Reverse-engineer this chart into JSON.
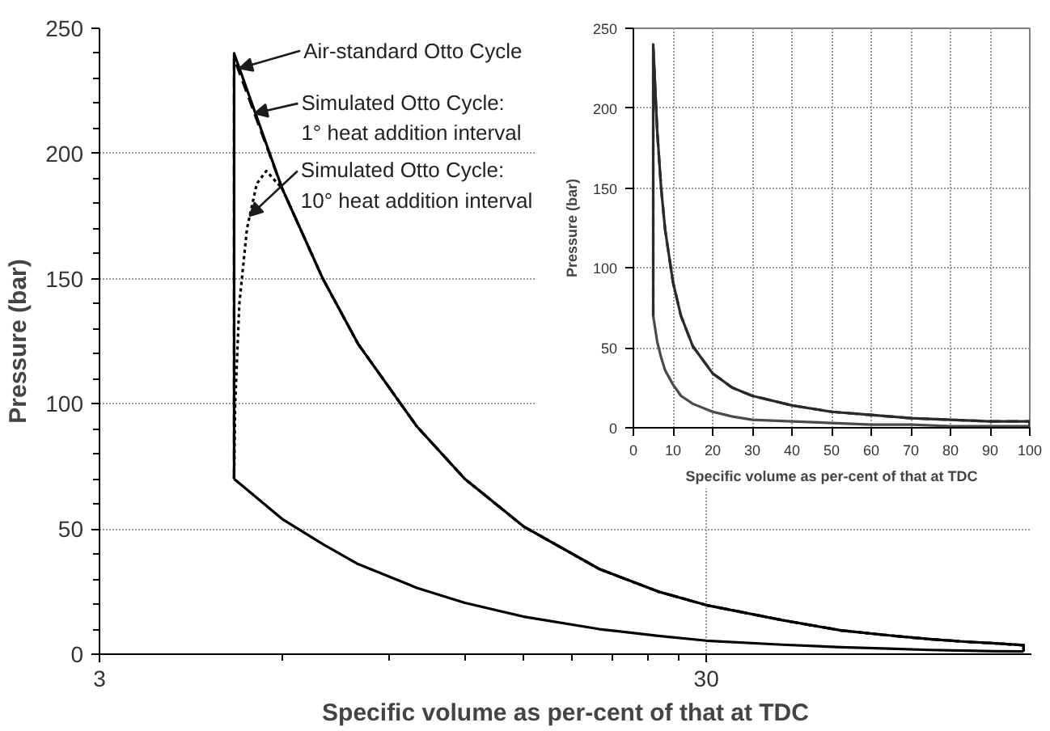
{
  "chart_data": [
    {
      "type": "line",
      "xlabel": "Specific volume as per-cent of that at TDC",
      "ylabel": "Pressure (bar)",
      "log": "x",
      "xlim": [
        3,
        103
      ],
      "ylim": [
        0,
        250
      ],
      "xticks": [
        3,
        {
          "value": 6,
          "label": null
        },
        {
          "value": 9,
          "label": null
        },
        {
          "value": 12,
          "label": null
        },
        {
          "value": 15,
          "label": null
        },
        {
          "value": 18,
          "label": null
        },
        {
          "value": 21,
          "label": null
        },
        {
          "value": 24,
          "label": null
        },
        {
          "value": 27,
          "label": null
        },
        30
      ],
      "yticks": [
        0,
        {
          "value": 10,
          "label": null
        },
        {
          "value": 20,
          "label": null
        },
        {
          "value": 30,
          "label": null
        },
        {
          "value": 40,
          "label": null
        },
        50,
        {
          "value": 60,
          "label": null
        },
        {
          "value": 70,
          "label": null
        },
        {
          "value": 80,
          "label": null
        },
        {
          "value": 90,
          "label": null
        },
        100,
        {
          "value": 110,
          "label": null
        },
        {
          "value": 120,
          "label": null
        },
        {
          "value": 130,
          "label": null
        },
        {
          "value": 140,
          "label": null
        },
        150,
        {
          "value": 160,
          "label": null
        },
        {
          "value": 170,
          "label": null
        },
        {
          "value": 180,
          "label": null
        },
        {
          "value": 190,
          "label": null
        },
        200,
        {
          "value": 210,
          "label": null
        },
        {
          "value": 220,
          "label": null
        },
        {
          "value": 230,
          "label": null
        },
        {
          "value": 240,
          "label": null
        },
        250
      ],
      "grid": true,
      "annotations": [
        {
          "text": "Air-standard Otto Cycle",
          "x": 5.1,
          "y": 234
        },
        {
          "text": "Simulated Otto Cycle:\n1° heat addition interval",
          "x": 5.4,
          "y": 216
        },
        {
          "text": "Simulated Otto Cycle:\n10° heat addition interval",
          "x": 5.3,
          "y": 175
        }
      ],
      "series": [
        {
          "color": "#000000",
          "line_style": "solid",
          "x": [
            5,
            6,
            7,
            8,
            10,
            12,
            15,
            20,
            25,
            30,
            40,
            50,
            60,
            70,
            80,
            90,
            100
          ],
          "values": [
            70,
            54,
            44,
            36,
            26.5,
            20.5,
            15,
            10,
            7.3,
            5.4,
            3.8,
            2.8,
            2.2,
            1.7,
            1.4,
            1.2,
            1.1
          ]
        },
        {
          "color": "#000000",
          "line_style": "solid",
          "x": [
            5,
            5,
            6,
            7,
            8,
            10,
            12,
            15,
            20,
            25,
            30,
            40,
            50,
            60,
            70,
            80,
            90,
            100,
            100
          ],
          "values": [
            70,
            240,
            186,
            150,
            124,
            91,
            70,
            51,
            34,
            25,
            19.6,
            13.6,
            9.5,
            7.5,
            6,
            5,
            4.3,
            3.6,
            1.1
          ]
        },
        {
          "color": "#000000",
          "line_style": "dashed",
          "x": [
            5,
            5,
            6,
            7,
            8,
            10,
            12,
            15,
            20,
            25,
            30,
            40,
            50,
            60,
            70,
            80,
            90,
            100,
            100
          ],
          "values": [
            70,
            238,
            186,
            150,
            124,
            91,
            70,
            51,
            34,
            25,
            19.6,
            13.6,
            9.5,
            7.5,
            6,
            5,
            4.3,
            3.6,
            1.1
          ]
        },
        {
          "color": "#000000",
          "line_style": "dotted",
          "x": [
            5,
            5.02,
            5.1,
            5.25,
            5.45,
            5.65,
            6,
            7,
            8,
            10,
            12,
            15,
            20,
            25,
            30,
            40,
            50,
            60,
            70,
            80,
            90,
            100,
            100
          ],
          "values": [
            70,
            100,
            140,
            170,
            188,
            193,
            186,
            150,
            124,
            91,
            70,
            51,
            34,
            25,
            19.6,
            13.6,
            9.5,
            7.5,
            6,
            5,
            4.3,
            3.6,
            1.1
          ]
        }
      ]
    },
    {
      "type": "line",
      "xlabel": "Specific volume as per-cent of that at TDC",
      "ylabel": "Pressure (bar)",
      "xlim": [
        0,
        100
      ],
      "ylim": [
        0,
        250
      ],
      "xticks": [
        0,
        10,
        20,
        30,
        40,
        50,
        60,
        70,
        80,
        90,
        100
      ],
      "yticks": [
        0,
        50,
        100,
        150,
        200,
        250
      ],
      "grid": true,
      "series": [
        {
          "color": "#4a4a4a",
          "line_style": "solid",
          "x": [
            5,
            6,
            7,
            8,
            10,
            12,
            15,
            20,
            25,
            30,
            40,
            50,
            60,
            70,
            80,
            90,
            100
          ],
          "values": [
            70,
            54,
            44,
            36,
            27,
            20,
            15,
            10,
            7,
            5,
            4,
            3,
            2,
            2,
            1,
            1,
            1
          ]
        },
        {
          "color": "#2a2a2a",
          "line_style": "solid",
          "x": [
            5,
            5,
            6,
            7,
            8,
            10,
            12,
            15,
            20,
            25,
            30,
            40,
            50,
            60,
            70,
            80,
            90,
            100,
            100
          ],
          "values": [
            70,
            240,
            186,
            150,
            124,
            91,
            70,
            51,
            34,
            25,
            20,
            14,
            10,
            8,
            6,
            5,
            4,
            4,
            1
          ]
        },
        {
          "color": "#2a2a2a",
          "line_style": "dashed",
          "x": [
            5,
            5,
            6,
            7,
            8,
            10,
            12,
            15,
            20,
            25,
            30,
            40,
            50,
            60,
            70,
            80,
            90,
            100,
            100
          ],
          "values": [
            70,
            238,
            186,
            150,
            124,
            91,
            70,
            51,
            34,
            25,
            20,
            14,
            10,
            8,
            6,
            5,
            4,
            4,
            1
          ]
        }
      ]
    }
  ]
}
